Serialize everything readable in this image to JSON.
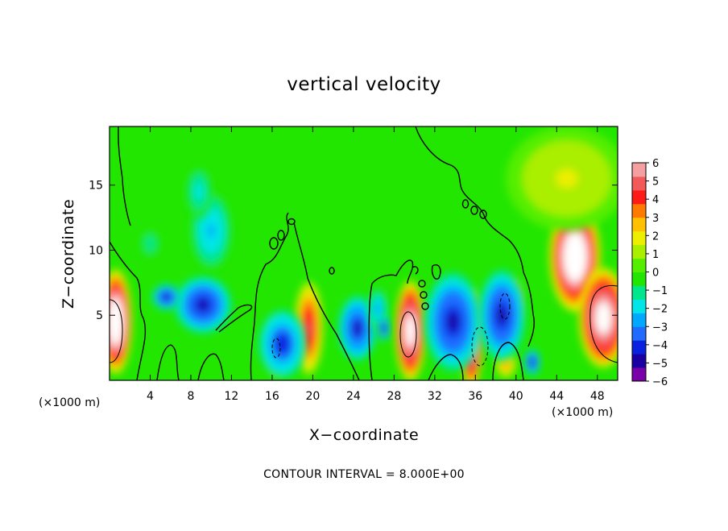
{
  "chart_data": {
    "type": "heatmap",
    "title": "vertical velocity",
    "xlabel": "X−coordinate",
    "ylabel": "Z−coordinate",
    "x_unit_left": "(×1000 m)",
    "x_unit_right": "(×1000 m)",
    "footer": "CONTOUR INTERVAL = 8.000E+00",
    "xlim": [
      0,
      50
    ],
    "ylim": [
      0,
      19.5
    ],
    "x_ticks": [
      4,
      8,
      12,
      16,
      20,
      24,
      28,
      32,
      36,
      40,
      44,
      48
    ],
    "y_ticks": [
      5,
      10,
      15
    ],
    "colorbar": {
      "ticks": [
        "6",
        "5",
        "4",
        "3",
        "2",
        "1",
        "0",
        "−1",
        "−2",
        "−3",
        "−4",
        "−5",
        "−6"
      ],
      "range": [
        -6,
        6
      ],
      "colors": [
        "#7a00a8",
        "#1a00a0",
        "#0a22e0",
        "#1f6cff",
        "#00a8ff",
        "#00e6e6",
        "#00e68a",
        "#22e600",
        "#55ee00",
        "#aaee00",
        "#eeee00",
        "#ffc000",
        "#ff7a00",
        "#ff1a1a",
        "#f25a5a",
        "#f5a0a0"
      ]
    },
    "features": [
      {
        "label": "updraft",
        "cx": 0.6,
        "cy": 4.5,
        "rx": 1.6,
        "ry": 4.0,
        "value": 8.5
      },
      {
        "label": "updraft",
        "cx": 16.6,
        "cy": 2.6,
        "rx": 1.1,
        "ry": 2.2,
        "value": 7.0
      },
      {
        "label": "updraft",
        "cx": 19.6,
        "cy": 4.0,
        "rx": 1.4,
        "ry": 3.6,
        "value": 5.0
      },
      {
        "label": "updraft",
        "cx": 29.6,
        "cy": 3.8,
        "rx": 1.5,
        "ry": 3.8,
        "value": 8.0
      },
      {
        "label": "updraft",
        "cx": 35.6,
        "cy": 3.2,
        "rx": 1.1,
        "ry": 3.8,
        "value": 8.0
      },
      {
        "label": "updraft",
        "cx": 39.6,
        "cy": 6.0,
        "rx": 1.0,
        "ry": 1.8,
        "value": 7.0
      },
      {
        "label": "updraft",
        "cx": 39.0,
        "cy": 1.2,
        "rx": 1.0,
        "ry": 1.0,
        "value": 3.0
      },
      {
        "label": "updraft",
        "cx": 45.8,
        "cy": 9.5,
        "rx": 2.5,
        "ry": 4.2,
        "value": 8.5
      },
      {
        "label": "updraft",
        "cx": 48.6,
        "cy": 4.8,
        "rx": 2.4,
        "ry": 3.8,
        "value": 8.0
      },
      {
        "label": "updraft",
        "cx": 10.4,
        "cy": 6.3,
        "rx": 0.5,
        "ry": 0.7,
        "value": 6.0
      },
      {
        "label": "updraft",
        "cx": 24.6,
        "cy": 3.8,
        "rx": 0.5,
        "ry": 0.7,
        "value": 4.5
      },
      {
        "label": "updraft",
        "cx": 45.0,
        "cy": 15.5,
        "rx": 6.0,
        "ry": 4.0,
        "value": 1.5
      },
      {
        "label": "downdraft",
        "cx": 9.2,
        "cy": 5.8,
        "rx": 2.8,
        "ry": 2.2,
        "value": -5.0
      },
      {
        "label": "downdraft",
        "cx": 10.0,
        "cy": 11.5,
        "rx": 2.0,
        "ry": 3.0,
        "value": -2.5
      },
      {
        "label": "downdraft",
        "cx": 8.8,
        "cy": 14.5,
        "rx": 1.3,
        "ry": 2.0,
        "value": -2.0
      },
      {
        "label": "downdraft",
        "cx": 17.0,
        "cy": 2.8,
        "rx": 2.3,
        "ry": 2.6,
        "value": -4.5
      },
      {
        "label": "downdraft",
        "cx": 24.4,
        "cy": 4.0,
        "rx": 1.9,
        "ry": 2.5,
        "value": -4.8
      },
      {
        "label": "downdraft",
        "cx": 33.8,
        "cy": 4.5,
        "rx": 2.8,
        "ry": 3.8,
        "value": -5.0
      },
      {
        "label": "downdraft",
        "cx": 38.6,
        "cy": 5.0,
        "rx": 2.3,
        "ry": 3.5,
        "value": -5.0
      },
      {
        "label": "downdraft",
        "cx": 41.6,
        "cy": 1.4,
        "rx": 0.8,
        "ry": 1.0,
        "value": -5.0
      },
      {
        "label": "downdraft",
        "cx": 5.6,
        "cy": 6.4,
        "rx": 1.4,
        "ry": 1.0,
        "value": -5.0
      },
      {
        "label": "downdraft",
        "cx": 26.4,
        "cy": 5.5,
        "rx": 1.0,
        "ry": 1.6,
        "value": -3.0
      },
      {
        "label": "downdraft",
        "cx": 27.0,
        "cy": 4.0,
        "rx": 0.6,
        "ry": 1.0,
        "value": -5.0
      },
      {
        "label": "downdraft",
        "cx": 4.0,
        "cy": 10.5,
        "rx": 1.2,
        "ry": 1.5,
        "value": -1.2
      }
    ]
  }
}
